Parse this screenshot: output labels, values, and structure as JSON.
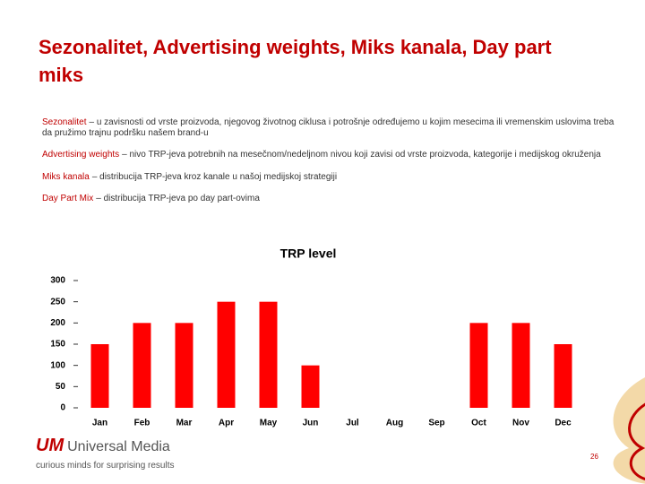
{
  "header": {
    "title": "Sezonalitet, Advertising weights, Miks kanala, Day part miks"
  },
  "paragraphs": [
    {
      "term": "Sezonalitet",
      "text": "– u zavisnosti od vrste proizvoda, njegovog životnog ciklusa i potrošnje određujemo u kojim mesecima ili vremenskim uslovima treba da pružimo trajnu podršku našem brand-u"
    },
    {
      "term": "Advertising weights",
      "text": "– nivo TRP-jeva potrebnih na mesečnom/nedeljnom nivou koji zavisi od vrste proizvoda, kategorije i medijskog okruženja"
    },
    {
      "term": "Miks kanala",
      "text": "– distribucija TRP-jeva kroz kanale u našoj medijskoj strategiji"
    },
    {
      "term": "Day Part Mix",
      "text": "– distribucija TRP-jeva po day part-ovima"
    }
  ],
  "chart_data": {
    "type": "bar",
    "title": "TRP level",
    "categories": [
      "Jan",
      "Feb",
      "Mar",
      "Apr",
      "May",
      "Jun",
      "Jul",
      "Aug",
      "Sep",
      "Oct",
      "Nov",
      "Dec"
    ],
    "values": [
      150,
      200,
      200,
      250,
      250,
      100,
      0,
      0,
      0,
      200,
      200,
      150
    ],
    "color": "#ff0000",
    "ylim": [
      0,
      300
    ],
    "yticks": [
      0,
      50,
      100,
      150,
      200,
      250,
      300
    ],
    "grid": false
  },
  "footer": {
    "logo_mark": "UM",
    "logo_name": "Universal Media",
    "tagline": "curious minds for surprising results",
    "page_number": "26"
  }
}
